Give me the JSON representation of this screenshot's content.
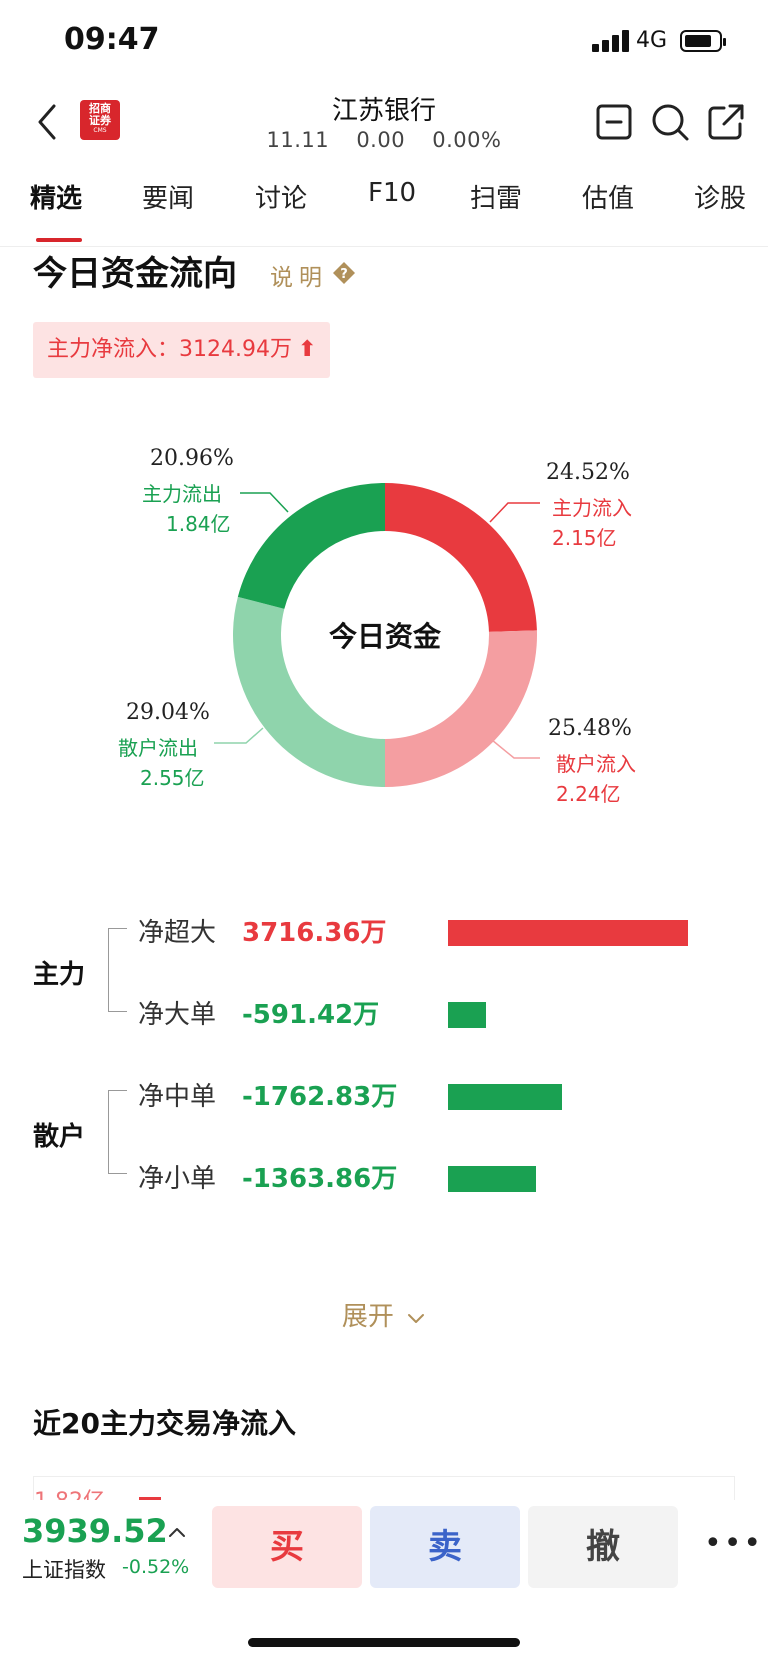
{
  "status_bar": {
    "time": "09:47",
    "network": "4G"
  },
  "header": {
    "logo_text": "招商\n证券",
    "logo_sub": "CMS",
    "stock_name": "江苏银行",
    "price": "11.11",
    "change": "0.00",
    "change_pct": "0.00%"
  },
  "tabs": [
    "精选",
    "要闻",
    "讨论",
    "F10",
    "扫雷",
    "估值",
    "诊股"
  ],
  "capital_flow": {
    "title": "今日资金流向",
    "explain": "说明",
    "net_inflow_label": "主力净流入：3124.94万",
    "net_inflow_arrow": "⬆",
    "donut_center": "今日资金",
    "segments": [
      {
        "name": "主力流入",
        "pct": "24.52%",
        "amount": "2.15亿",
        "color": "#e83a3f",
        "value": 24.52
      },
      {
        "name": "散户流入",
        "pct": "25.48%",
        "amount": "2.24亿",
        "color": "#f49ea1",
        "value": 25.48
      },
      {
        "name": "散户流出",
        "pct": "29.04%",
        "amount": "2.55亿",
        "color": "#8fd4ac",
        "value": 29.04
      },
      {
        "name": "主力流出",
        "pct": "20.96%",
        "amount": "1.84亿",
        "color": "#1aa152",
        "value": 20.96
      }
    ],
    "groups": [
      {
        "name": "主力",
        "rows": [
          {
            "name": "净超大",
            "value": "3716.36万",
            "amount": 3716.36
          },
          {
            "name": "净大单",
            "value": "-591.42万",
            "amount": -591.42
          }
        ]
      },
      {
        "name": "散户",
        "rows": [
          {
            "name": "净中单",
            "value": "-1762.83万",
            "amount": -1762.83
          },
          {
            "name": "净小单",
            "value": "-1363.86万",
            "amount": -1363.86
          }
        ]
      }
    ],
    "expand_label": "展开"
  },
  "section2": {
    "title": "近20主力交易净流入",
    "peek_label": "1.82亿"
  },
  "bottom": {
    "index_value": "3939.52",
    "index_name": "上证指数",
    "index_change": "-0.52%",
    "buy": "买",
    "sell": "卖",
    "cancel": "撤",
    "more": "•••"
  },
  "colors": {
    "up": "#e83a3f",
    "down": "#1aa152",
    "accent_gold": "#b0905a"
  }
}
